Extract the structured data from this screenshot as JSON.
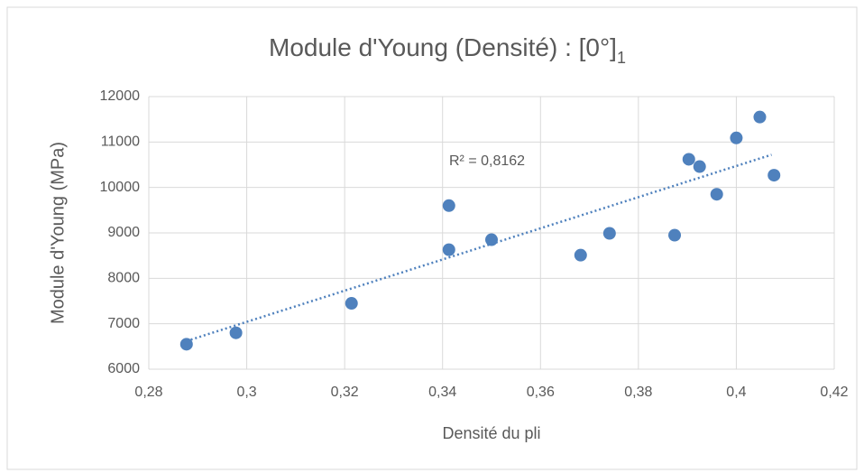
{
  "chart_data": {
    "type": "scatter",
    "title": "Module d'Young (Densité) : [0°]",
    "title_subscript": "1",
    "x_label": "Densité du pli",
    "y_label": "Module d'Young (MPa)",
    "color": "#4f81bd",
    "x": [
      0.2877,
      0.2978,
      0.3214,
      0.3413,
      0.3413,
      0.35,
      0.3682,
      0.3741,
      0.3874,
      0.3903,
      0.3925,
      0.396,
      0.4,
      0.4048,
      0.4077
    ],
    "values": [
      6550,
      6800,
      7450,
      9600,
      8630,
      8850,
      8510,
      8990,
      8950,
      10620,
      10460,
      9850,
      11090,
      11550,
      10270
    ],
    "trendline": {
      "x": [
        0.2877,
        0.4072
      ],
      "y": [
        6620,
        10720
      ],
      "label": "R² = 0,8162"
    },
    "xlim": [
      0.28,
      0.42
    ],
    "xticks": [
      {
        "value": 0.28,
        "label": "0,28"
      },
      {
        "value": 0.3,
        "label": "0,3"
      },
      {
        "value": 0.32,
        "label": "0,32"
      },
      {
        "value": 0.34,
        "label": "0,34"
      },
      {
        "value": 0.36,
        "label": "0,36"
      },
      {
        "value": 0.38,
        "label": "0,38"
      },
      {
        "value": 0.4,
        "label": "0,4"
      },
      {
        "value": 0.42,
        "label": "0,42"
      }
    ],
    "ylim": [
      6000,
      12000
    ],
    "yticks": [
      6000,
      7000,
      8000,
      9000,
      10000,
      11000,
      12000
    ],
    "grid": true
  }
}
